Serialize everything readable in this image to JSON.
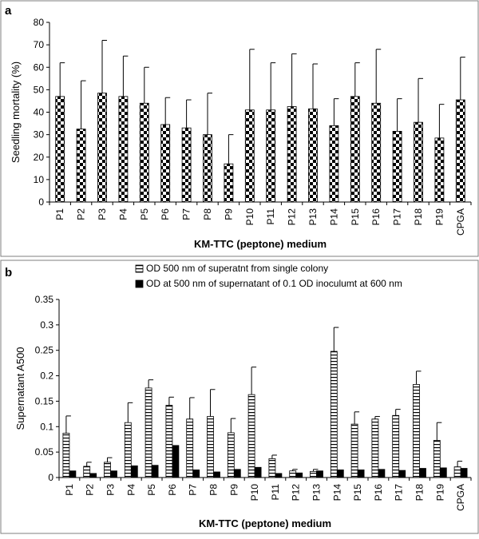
{
  "chart_data": [
    {
      "type": "bar",
      "panel_label": "a",
      "categories": [
        "P1",
        "P2",
        "P3",
        "P4",
        "P5",
        "P6",
        "P7",
        "P8",
        "P9",
        "P10",
        "P11",
        "P12",
        "P13",
        "P14",
        "P15",
        "P16",
        "P17",
        "P18",
        "P19",
        "CPGA"
      ],
      "series": [
        {
          "values": [
            47,
            32.5,
            48.5,
            47,
            44,
            34.5,
            33,
            30,
            17,
            41,
            41,
            42.5,
            41.5,
            34,
            47,
            44,
            31.5,
            35.5,
            28.5,
            45.5
          ],
          "errors": [
            15,
            21.5,
            23.5,
            18,
            16,
            12,
            12.5,
            18.5,
            13,
            27,
            21,
            23.5,
            20,
            12,
            15,
            24,
            14.5,
            19.5,
            15,
            19
          ],
          "pattern": "checkered",
          "color": "#000000"
        }
      ],
      "xlabel": "KM-TTC (peptone) medium",
      "ylabel": "Seedling mortality (%)",
      "ylim": [
        0,
        80
      ],
      "yticks": [
        "0",
        "10",
        "20",
        "30",
        "40",
        "50",
        "60",
        "70",
        "80"
      ],
      "legend": "none",
      "grid": false
    },
    {
      "type": "bar",
      "panel_label": "b",
      "categories": [
        "P1",
        "P2",
        "P3",
        "P4",
        "P5",
        "P6",
        "P7",
        "P8",
        "P9",
        "P10",
        "P11",
        "P12",
        "P13",
        "P14",
        "P15",
        "P16",
        "P17",
        "P18",
        "P19",
        "CPGA"
      ],
      "series": [
        {
          "name": "OD 500 nm of superatnt from single colony",
          "values": [
            0.087,
            0.022,
            0.03,
            0.108,
            0.176,
            0.142,
            0.115,
            0.12,
            0.088,
            0.163,
            0.037,
            0.013,
            0.012,
            0.248,
            0.105,
            0.115,
            0.122,
            0.183,
            0.073,
            0.021
          ],
          "errors": [
            0.034,
            0.008,
            0.009,
            0.039,
            0.016,
            0.016,
            0.042,
            0.053,
            0.028,
            0.054,
            0.007,
            0.003,
            0.004,
            0.047,
            0.024,
            0.005,
            0.012,
            0.026,
            0.035,
            0.011
          ],
          "pattern": "horizontal-stripes",
          "color": "#000000"
        },
        {
          "name": "OD at 500 nm of supernatant of  0.1 OD inoculumt at 600 nm",
          "values": [
            0.013,
            0.008,
            0.013,
            0.023,
            0.024,
            0.063,
            0.015,
            0.011,
            0.016,
            0.02,
            0.008,
            0.009,
            0.013,
            0.015,
            0.015,
            0.016,
            0.014,
            0.018,
            0.019,
            0.018
          ],
          "pattern": "solid",
          "color": "#000000"
        }
      ],
      "xlabel": "KM-TTC (peptone) medium",
      "ylabel": "Supernatant  A500",
      "ylim": [
        0,
        0.35
      ],
      "yticks": [
        "0",
        "0.05",
        "0.1",
        "0.15",
        "0.2",
        "0.25",
        "0.3",
        "0.35"
      ],
      "legend": "top",
      "grid": false
    }
  ]
}
